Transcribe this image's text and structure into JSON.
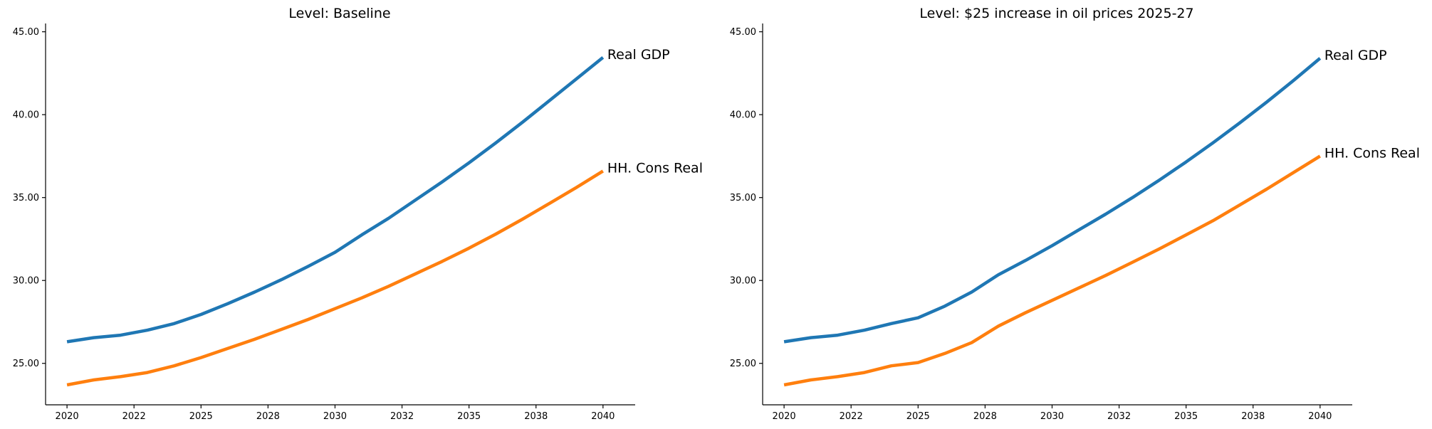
{
  "chart_data": [
    {
      "type": "line",
      "title": "Level: Baseline",
      "xlabel": "",
      "ylabel": "",
      "x": [
        2020,
        2021,
        2022,
        2023,
        2024,
        2025,
        2026,
        2027,
        2028,
        2029,
        2030,
        2031,
        2032,
        2033,
        2034,
        2035,
        2036,
        2037,
        2038,
        2039,
        2040
      ],
      "x_ticks": [
        "2020",
        "2022",
        "2025",
        "2028",
        "2030",
        "2032",
        "2035",
        "2038",
        "2040"
      ],
      "y_ticks": [
        "25.00",
        "30.00",
        "35.00",
        "40.00",
        "45.00"
      ],
      "ylim": [
        22.5,
        45.5
      ],
      "xlim": [
        2019.2,
        2041.2
      ],
      "grid": false,
      "series": [
        {
          "name": "Real GDP",
          "color": "#1f77b4",
          "values": [
            26.3,
            26.55,
            26.7,
            27.0,
            27.4,
            27.95,
            28.6,
            29.3,
            30.05,
            30.85,
            31.7,
            32.75,
            33.75,
            34.85,
            35.95,
            37.1,
            38.3,
            39.55,
            40.85,
            42.15,
            43.45
          ]
        },
        {
          "name": "HH. Cons Real",
          "color": "#ff7f0e",
          "values": [
            23.7,
            24.0,
            24.2,
            24.45,
            24.85,
            25.35,
            25.9,
            26.45,
            27.05,
            27.65,
            28.3,
            28.95,
            29.65,
            30.4,
            31.15,
            31.95,
            32.8,
            33.7,
            34.65,
            35.6,
            36.6
          ]
        }
      ]
    },
    {
      "type": "line",
      "title": "Level: $25 increase in oil prices 2025-27",
      "xlabel": "",
      "ylabel": "",
      "x": [
        2020,
        2021,
        2022,
        2023,
        2024,
        2025,
        2026,
        2027,
        2028,
        2029,
        2030,
        2031,
        2032,
        2033,
        2034,
        2035,
        2036,
        2037,
        2038,
        2039,
        2040
      ],
      "x_ticks": [
        "2020",
        "2022",
        "2025",
        "2028",
        "2030",
        "2032",
        "2035",
        "2038",
        "2040"
      ],
      "y_ticks": [
        "25.00",
        "30.00",
        "35.00",
        "40.00",
        "45.00"
      ],
      "ylim": [
        22.5,
        45.5
      ],
      "xlim": [
        2019.2,
        2041.2
      ],
      "grid": false,
      "series": [
        {
          "name": "Real GDP",
          "color": "#1f77b4",
          "values": [
            26.3,
            26.55,
            26.7,
            27.0,
            27.4,
            27.75,
            28.45,
            29.3,
            30.35,
            31.2,
            32.1,
            33.05,
            34.0,
            35.0,
            36.05,
            37.15,
            38.3,
            39.5,
            40.75,
            42.05,
            43.4
          ]
        },
        {
          "name": "HH. Cons Real",
          "color": "#ff7f0e",
          "values": [
            23.7,
            24.0,
            24.2,
            24.45,
            24.85,
            25.05,
            25.6,
            26.25,
            27.25,
            28.05,
            28.8,
            29.55,
            30.3,
            31.1,
            31.9,
            32.75,
            33.6,
            34.55,
            35.5,
            36.5,
            37.5
          ]
        }
      ]
    }
  ]
}
